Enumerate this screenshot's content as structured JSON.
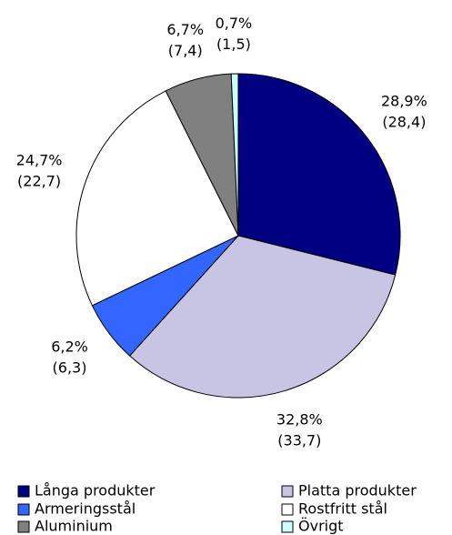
{
  "chart_data": {
    "type": "pie",
    "categories": [
      "Långa produkter",
      "Platta produkter",
      "Armeringsstål",
      "Rostfritt stål",
      "Aluminium",
      "Övrigt"
    ],
    "values": [
      28.9,
      32.8,
      6.2,
      24.7,
      6.7,
      0.7
    ],
    "value_labels": [
      "28,9%",
      "32,8%",
      "6,2%",
      "24,7%",
      "6,7%",
      "0,7%"
    ],
    "previous_values": [
      28.4,
      33.7,
      6.3,
      22.7,
      7.4,
      1.5
    ],
    "previous_value_labels": [
      "(28,4)",
      "(33,7)",
      "(6,3)",
      "(22,7)",
      "(7,4)",
      "(1,5)"
    ],
    "colors": [
      "#000080",
      "#c8c4e4",
      "#3366ff",
      "#ffffff",
      "#808080",
      "#ccffff"
    ],
    "legend": "bottom"
  }
}
